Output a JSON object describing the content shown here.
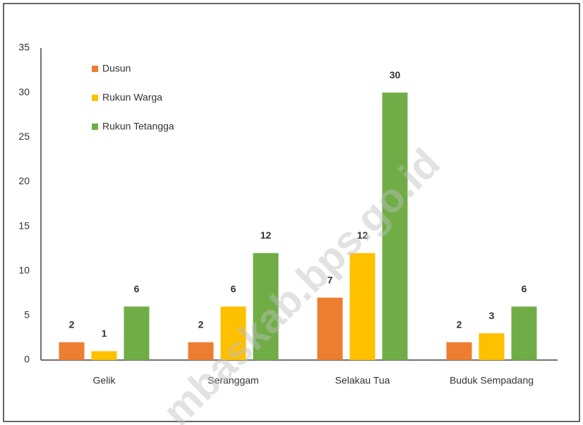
{
  "chart_data": {
    "type": "bar",
    "categories": [
      "Gelik",
      "Seranggam",
      "Selakau Tua",
      "Buduk Sempadang"
    ],
    "series": [
      {
        "name": "Dusun",
        "color": "#ed7d31",
        "values": [
          2,
          2,
          7,
          2
        ]
      },
      {
        "name": "Rukun Warga",
        "color": "#ffc000",
        "values": [
          1,
          6,
          12,
          3
        ]
      },
      {
        "name": "Rukun Tetangga",
        "color": "#70ad47",
        "values": [
          6,
          12,
          30,
          6
        ]
      }
    ],
    "ylim": [
      0,
      35
    ],
    "yticks": [
      0,
      5,
      10,
      15,
      20,
      25,
      30,
      35
    ],
    "grid": false,
    "legend": "top-left",
    "watermark": "mbaskab.bps.go.id"
  }
}
